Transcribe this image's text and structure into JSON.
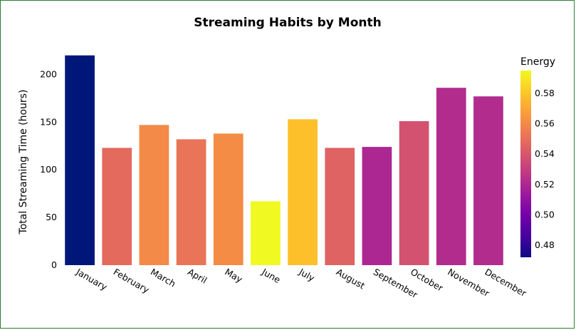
{
  "chart_data": {
    "type": "bar",
    "title": "Streaming Habits by Month",
    "xlabel": "",
    "ylabel": "Total Streaming Time (hours)",
    "ylim": [
      0,
      228
    ],
    "yticks": [
      0,
      50,
      100,
      150,
      200
    ],
    "categories": [
      "January",
      "February",
      "March",
      "April",
      "May",
      "June",
      "July",
      "August",
      "September",
      "October",
      "November",
      "December"
    ],
    "values": [
      220,
      123,
      147,
      132,
      138,
      67,
      153,
      123,
      124,
      151,
      186,
      177
    ],
    "energy": [
      0.472,
      0.548,
      0.56,
      0.552,
      0.561,
      0.595,
      0.578,
      0.545,
      0.52,
      0.538,
      0.522,
      0.522
    ],
    "colorbar": {
      "title": "Energy",
      "range": [
        0.472,
        0.595
      ],
      "ticks": [
        "0.48",
        "0.50",
        "0.52",
        "0.54",
        "0.56",
        "0.58"
      ],
      "colorscale": [
        "#0d0887",
        "#46039f",
        "#7201a8",
        "#9c179e",
        "#bd3786",
        "#d8576b",
        "#ed7953",
        "#fb9f3a",
        "#fdca26",
        "#f0f921"
      ],
      "bottom_color": "#00177a"
    },
    "grid": false,
    "legend": "right"
  }
}
